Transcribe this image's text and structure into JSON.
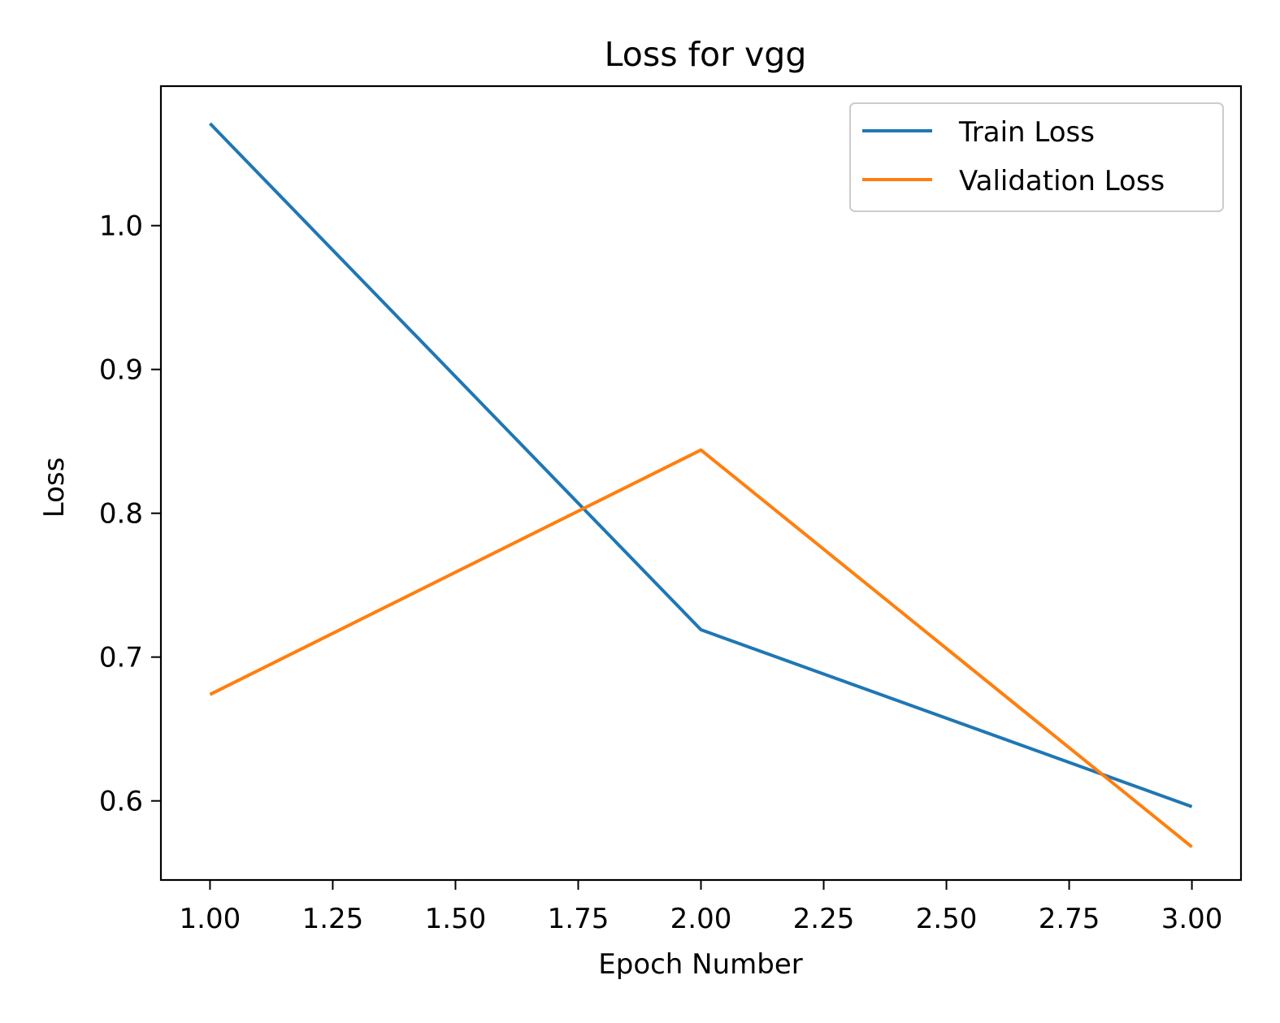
{
  "chart_data": {
    "type": "line",
    "title": "Loss for vgg",
    "xlabel": "Epoch Number",
    "ylabel": "Loss",
    "x": [
      1,
      2,
      3
    ],
    "xlim": [
      0.9,
      3.1
    ],
    "ylim": [
      0.545,
      1.097
    ],
    "xticks": [
      1.0,
      1.25,
      1.5,
      1.75,
      2.0,
      2.25,
      2.5,
      2.75,
      3.0
    ],
    "xtick_labels": [
      "1.00",
      "1.25",
      "1.50",
      "1.75",
      "2.00",
      "2.25",
      "2.50",
      "2.75",
      "3.00"
    ],
    "yticks": [
      0.6,
      0.7,
      0.8,
      0.9,
      1.0
    ],
    "ytick_labels": [
      "0.6",
      "0.7",
      "0.8",
      "0.9",
      "1.0"
    ],
    "grid": false,
    "legend_position": "top-right",
    "series": [
      {
        "name": "Train Loss",
        "color": "#1f77b4",
        "values": [
          1.071,
          0.719,
          0.596
        ]
      },
      {
        "name": "Validation Loss",
        "color": "#ff7f0e",
        "values": [
          0.674,
          0.844,
          0.568
        ]
      }
    ]
  }
}
